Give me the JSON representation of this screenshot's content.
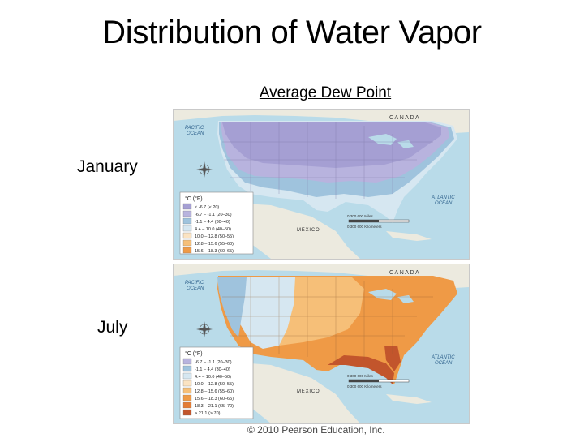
{
  "slide": {
    "title": "Distribution of Water Vapor",
    "subtitle": "Average Dew Point",
    "copyright": "© 2010 Pearson Education, Inc."
  },
  "maps": [
    {
      "label": "January",
      "labels": {
        "canada": "CANADA",
        "mexico": "MEXICO",
        "pacific_line1": "PACIFIC",
        "pacific_line2": "OCEAN",
        "atlantic_line1": "ATLANTIC",
        "atlantic_line2": "OCEAN",
        "scale_miles": "0 300 600 Miles",
        "scale_km": "0 300 600 Kilometers"
      },
      "legend": {
        "header": "°C (°F)",
        "items": [
          {
            "label": "< -6.7 (< 20)",
            "color": "#a59fd3"
          },
          {
            "label": "-6.7 – -1.1 (20–30)",
            "color": "#b8b3de"
          },
          {
            "label": "-1.1 – 4.4 (30–40)",
            "color": "#9fc3dd"
          },
          {
            "label": "4.4 – 10.0 (40–50)",
            "color": "#d6e7f1"
          },
          {
            "label": "10.0 – 12.8 (50–55)",
            "color": "#fbe3c2"
          },
          {
            "label": "12.8 – 15.6 (55–60)",
            "color": "#f6bf78"
          },
          {
            "label": "15.6 – 18.3 (60–65)",
            "color": "#ef9a46"
          }
        ]
      },
      "colors": {
        "north": "#a59fd3",
        "mid": "#b8b3de",
        "south": "#9fc3dd",
        "coast": "#d6e7f1"
      }
    },
    {
      "label": "July",
      "labels": {
        "canada": "CANADA",
        "mexico": "MEXICO",
        "pacific_line1": "PACIFIC",
        "pacific_line2": "OCEAN",
        "atlantic_line1": "ATLANTIC",
        "atlantic_line2": "OCEAN",
        "scale_miles": "0 300 600 Miles",
        "scale_km": "0 300 600 Kilometers"
      },
      "legend": {
        "header": "°C (°F)",
        "items": [
          {
            "label": "-6.7 – -1.1 (20–30)",
            "color": "#b8b3de"
          },
          {
            "label": "-1.1 – 4.4 (30–40)",
            "color": "#9fc3dd"
          },
          {
            "label": "4.4 – 10.0 (40–50)",
            "color": "#d6e7f1"
          },
          {
            "label": "10.0 – 12.8 (50–55)",
            "color": "#fbe3c2"
          },
          {
            "label": "12.8 – 15.6 (55–60)",
            "color": "#f6bf78"
          },
          {
            "label": "15.6 – 18.3 (60–65)",
            "color": "#ef9a46"
          },
          {
            "label": "18.3 – 21.1 (65–70)",
            "color": "#e47c35"
          },
          {
            "label": "> 21.1 (> 70)",
            "color": "#c2552c"
          }
        ]
      },
      "colors": {
        "west": "#9fc3dd",
        "mountain": "#d6e7f1",
        "plains": "#f6bf78",
        "east": "#ef9a46",
        "gulf": "#c2552c"
      }
    }
  ]
}
